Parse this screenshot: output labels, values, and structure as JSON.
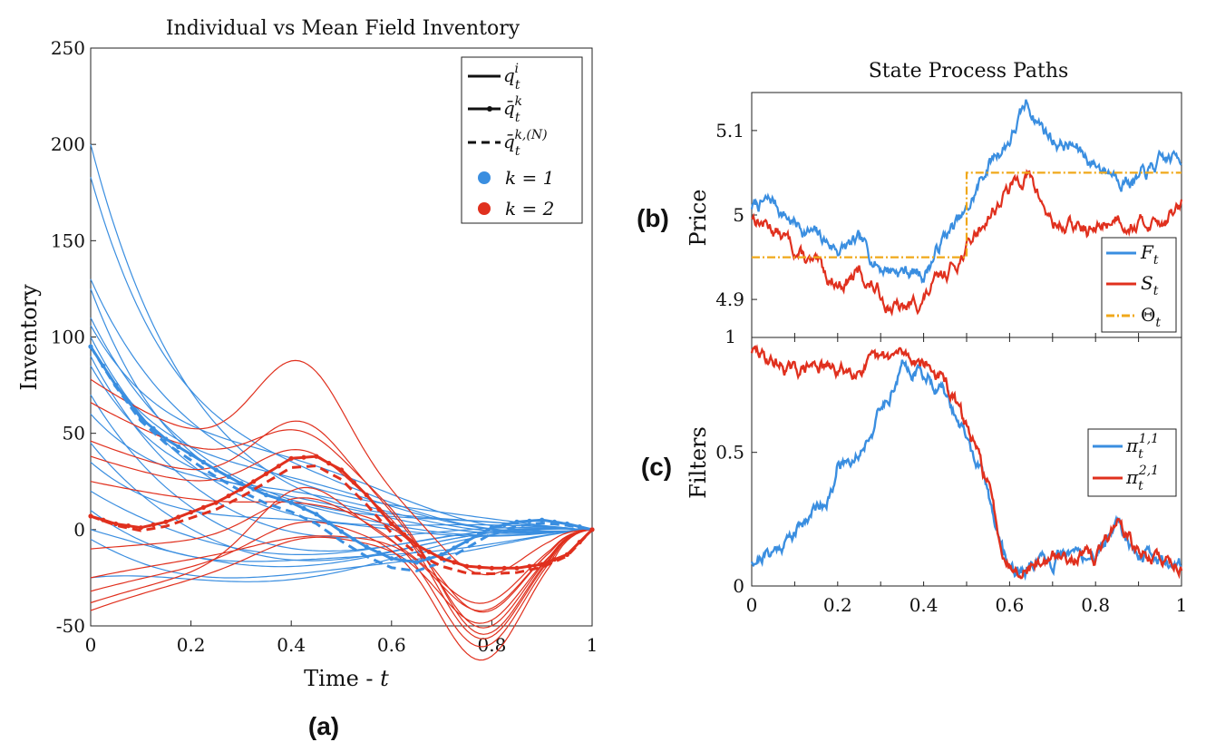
{
  "chart_data": [
    {
      "panel_label": "(a)",
      "type": "line",
      "title": "Individual vs Mean Field Inventory",
      "xlabel": "Time - t",
      "ylabel": "Inventory",
      "xlim": [
        0,
        1
      ],
      "ylim": [
        -50,
        250
      ],
      "x_ticks": [
        0,
        0.2,
        0.4,
        0.6,
        0.8,
        1
      ],
      "x_tick_labels": [
        "0",
        "0.2",
        "0.4",
        "0.6",
        "0.8",
        "1"
      ],
      "y_ticks": [
        -50,
        0,
        50,
        100,
        150,
        200,
        250
      ],
      "y_tick_labels": [
        "-50",
        "0",
        "50",
        "100",
        "150",
        "200",
        "250"
      ],
      "colors": {
        "k1": "#3a8ee0",
        "k2": "#e0301e"
      },
      "legend": {
        "position": "top-right",
        "entries": [
          "q_t^i",
          "q̄_t^k",
          "q̄_t^{k,(N)}",
          "k = 1",
          "k = 2"
        ]
      },
      "legend_labels": {
        "q_main": "q",
        "q_sup": "i",
        "q_sub": "t",
        "qbar_main": "q̄",
        "qbar_sup": "k",
        "qbar_sub": "t",
        "qbarN_main": "q̄",
        "qbarN_sup": "k,(N)",
        "qbarN_sub": "t",
        "k1": "k = 1",
        "k2": "k = 2"
      },
      "individual_k1": [
        {
          "q0": 200,
          "qm": 5
        },
        {
          "q0": 183,
          "qm": 12
        },
        {
          "q0": 130,
          "qm": 18
        },
        {
          "q0": 125,
          "qm": -6
        },
        {
          "q0": 110,
          "qm": 8
        },
        {
          "q0": 106,
          "qm": 25
        },
        {
          "q0": 100,
          "qm": 0
        },
        {
          "q0": 95,
          "qm": 14
        },
        {
          "q0": 90,
          "qm": -10
        },
        {
          "q0": 85,
          "qm": 3
        },
        {
          "q0": 70,
          "qm": -18
        },
        {
          "q0": 60,
          "qm": 10
        },
        {
          "q0": 45,
          "qm": -22
        },
        {
          "q0": 35,
          "qm": -5
        },
        {
          "q0": 20,
          "qm": -15
        },
        {
          "q0": 10,
          "qm": -28
        },
        {
          "q0": 0,
          "qm": -20
        },
        {
          "q0": -5,
          "qm": -35
        },
        {
          "q0": -25,
          "qm": -25
        }
      ],
      "individual_k2": [
        {
          "q0": 78,
          "a": 60,
          "b": -30
        },
        {
          "q0": 66,
          "a": 28,
          "b": -60
        },
        {
          "q0": 46,
          "a": 40,
          "b": -55
        },
        {
          "q0": 38,
          "a": 28,
          "b": -60
        },
        {
          "q0": 25,
          "a": 5,
          "b": -45
        },
        {
          "q0": -10,
          "a": 20,
          "b": -60
        },
        {
          "q0": -25,
          "a": 5,
          "b": -40
        },
        {
          "q0": -32,
          "a": 15,
          "b": -65
        },
        {
          "q0": -38,
          "a": 35,
          "b": -35
        },
        {
          "q0": -42,
          "a": 10,
          "b": -45
        }
      ],
      "mean_field_k1": {
        "x": [
          0,
          0.05,
          0.1,
          0.15,
          0.2,
          0.25,
          0.3,
          0.35,
          0.4,
          0.45,
          0.5,
          0.55,
          0.6,
          0.65,
          0.7,
          0.75,
          0.8,
          0.85,
          0.9,
          0.95,
          1
        ],
        "y": [
          95,
          75,
          58,
          47,
          39,
          31,
          24,
          18,
          14,
          8,
          -1,
          -9,
          -15,
          -17,
          -13,
          -6,
          1,
          4,
          5,
          3,
          0
        ]
      },
      "mean_field_k2": {
        "x": [
          0,
          0.05,
          0.1,
          0.15,
          0.2,
          0.25,
          0.3,
          0.35,
          0.4,
          0.45,
          0.5,
          0.55,
          0.6,
          0.65,
          0.7,
          0.75,
          0.8,
          0.85,
          0.9,
          0.95,
          1
        ],
        "y": [
          7,
          3,
          1,
          4,
          9,
          14,
          21,
          29,
          37,
          38,
          31,
          18,
          3,
          -8,
          -15,
          -19,
          -20,
          -20,
          -18,
          -13,
          0
        ]
      },
      "finite_N_offset": -5
    },
    {
      "panel_label": "(b)",
      "type": "line",
      "title": "State Process Paths",
      "ylabel": "Price",
      "xlim": [
        0,
        1
      ],
      "ylim": [
        4.855,
        5.145
      ],
      "y_ticks": [
        4.9,
        5,
        5.1
      ],
      "y_tick_labels": [
        "4.9",
        "5",
        "5.1"
      ],
      "corner_label": "1",
      "colors": {
        "F": "#3a8ee0",
        "S": "#e0301e",
        "Theta": "#f0a81a"
      },
      "legend": {
        "position": "bottom-right",
        "entries": [
          "F_t",
          "S_t",
          "Θ_t"
        ]
      },
      "legend_labels": {
        "F_main": "F",
        "F_sub": "t",
        "S_main": "S",
        "S_sub": "t",
        "Th_main": "Θ",
        "Th_sub": "t"
      },
      "F": {
        "x": [
          0,
          0.05,
          0.1,
          0.15,
          0.2,
          0.25,
          0.3,
          0.35,
          0.4,
          0.45,
          0.5,
          0.55,
          0.6,
          0.64,
          0.7,
          0.75,
          0.8,
          0.85,
          0.9,
          0.95,
          1
        ],
        "y": [
          5.01,
          5.015,
          4.99,
          4.975,
          4.96,
          4.965,
          4.94,
          4.935,
          4.93,
          4.975,
          5.0,
          5.06,
          5.09,
          5.13,
          5.09,
          5.08,
          5.06,
          5.05,
          5.04,
          5.06,
          5.07
        ]
      },
      "S": {
        "x": [
          0,
          0.05,
          0.1,
          0.15,
          0.2,
          0.25,
          0.3,
          0.35,
          0.4,
          0.45,
          0.5,
          0.55,
          0.6,
          0.64,
          0.7,
          0.75,
          0.8,
          0.85,
          0.9,
          0.95,
          1
        ],
        "y": [
          5.0,
          4.985,
          4.96,
          4.935,
          4.92,
          4.93,
          4.905,
          4.885,
          4.9,
          4.93,
          4.96,
          5.0,
          5.03,
          5.05,
          4.99,
          4.985,
          4.98,
          5.0,
          4.99,
          4.995,
          5.01
        ]
      },
      "Theta": {
        "x": [
          0,
          0.5,
          0.5,
          1
        ],
        "y": [
          4.95,
          4.95,
          5.05,
          5.05
        ]
      }
    },
    {
      "panel_label": "(c)",
      "type": "line",
      "ylabel": "Filters",
      "xlabel": "",
      "xlim": [
        0,
        1
      ],
      "ylim": [
        0,
        0.93
      ],
      "x_ticks": [
        0,
        0.2,
        0.4,
        0.6,
        0.8,
        1
      ],
      "x_tick_labels": [
        "0",
        "0.2",
        "0.4",
        "0.6",
        "0.8",
        "1"
      ],
      "y_ticks": [
        0,
        0.5
      ],
      "y_tick_labels": [
        "0",
        "0.5"
      ],
      "colors": {
        "pi11": "#3a8ee0",
        "pi21": "#e0301e"
      },
      "legend": {
        "position": "right",
        "entries": [
          "π_t^{1,1}",
          "π_t^{2,1}"
        ]
      },
      "legend_labels": {
        "p1_main": "π",
        "p1_sup": "1,1",
        "p1_sub": "t",
        "p2_main": "π",
        "p2_sup": "2,1",
        "p2_sub": "t"
      },
      "pi11": {
        "x": [
          0,
          0.05,
          0.1,
          0.15,
          0.19,
          0.2,
          0.25,
          0.3,
          0.35,
          0.4,
          0.45,
          0.5,
          0.55,
          0.58,
          0.6,
          0.63,
          0.7,
          0.75,
          0.8,
          0.85,
          0.9,
          0.95,
          1
        ],
        "y": [
          0.1,
          0.13,
          0.2,
          0.3,
          0.35,
          0.45,
          0.5,
          0.65,
          0.82,
          0.8,
          0.72,
          0.55,
          0.35,
          0.15,
          0.07,
          0.06,
          0.09,
          0.12,
          0.1,
          0.25,
          0.12,
          0.1,
          0.08
        ]
      },
      "pi21": {
        "x": [
          0,
          0.05,
          0.1,
          0.15,
          0.2,
          0.25,
          0.3,
          0.35,
          0.4,
          0.45,
          0.5,
          0.55,
          0.58,
          0.6,
          0.63,
          0.7,
          0.75,
          0.8,
          0.85,
          0.9,
          0.95,
          1
        ],
        "y": [
          0.88,
          0.84,
          0.8,
          0.83,
          0.8,
          0.82,
          0.84,
          0.87,
          0.84,
          0.76,
          0.6,
          0.38,
          0.16,
          0.08,
          0.07,
          0.1,
          0.12,
          0.1,
          0.25,
          0.12,
          0.1,
          0.08
        ]
      }
    }
  ],
  "panel_letters": {
    "a": "(a)",
    "b": "(b)",
    "c": "(c)"
  },
  "axis_label_parts": {
    "time_prefix": "Time - ",
    "time_var": "t"
  }
}
